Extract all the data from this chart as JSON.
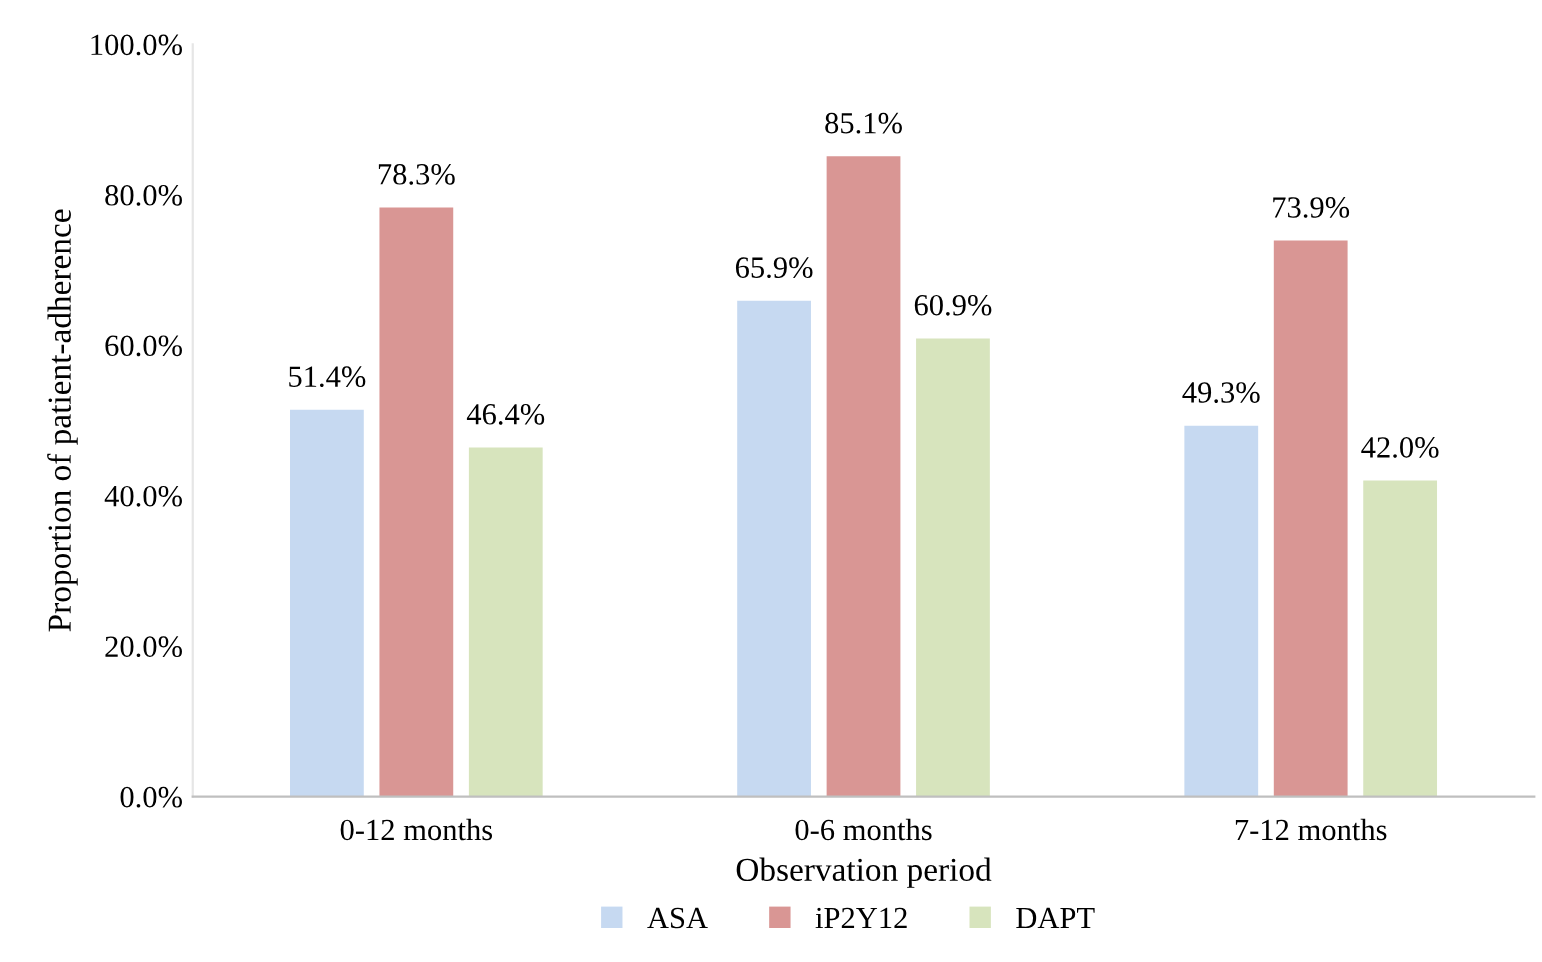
{
  "chart_data": {
    "type": "bar",
    "xlabel": "Observation period",
    "ylabel": "Proportion of patient-adherence",
    "categories": [
      "0-12 months",
      "0-6 months",
      "7-12 months"
    ],
    "series": [
      {
        "name": "ASA",
        "color": "#c6d9f1",
        "values": [
          51.4,
          65.9,
          49.3
        ],
        "value_labels": [
          "51.4%",
          "65.9%",
          "49.3%"
        ]
      },
      {
        "name": "iP2Y12",
        "color": "#d99694",
        "values": [
          78.3,
          85.1,
          73.9
        ],
        "value_labels": [
          "78.3%",
          "85.1%",
          "73.9%"
        ]
      },
      {
        "name": "DAPT",
        "color": "#d7e4bd",
        "values": [
          46.4,
          60.9,
          42.0
        ],
        "value_labels": [
          "46.4%",
          "60.9%",
          "42.0%"
        ]
      }
    ],
    "ylim": [
      0,
      100
    ],
    "yticks": [
      {
        "value": 0,
        "label": "0.0%"
      },
      {
        "value": 20,
        "label": "20.0%"
      },
      {
        "value": 40,
        "label": "40.0%"
      },
      {
        "value": 60,
        "label": "60.0%"
      },
      {
        "value": 80,
        "label": "80.0%"
      },
      {
        "value": 100,
        "label": "100.0%"
      }
    ],
    "grid": false,
    "legend": "bottom"
  }
}
